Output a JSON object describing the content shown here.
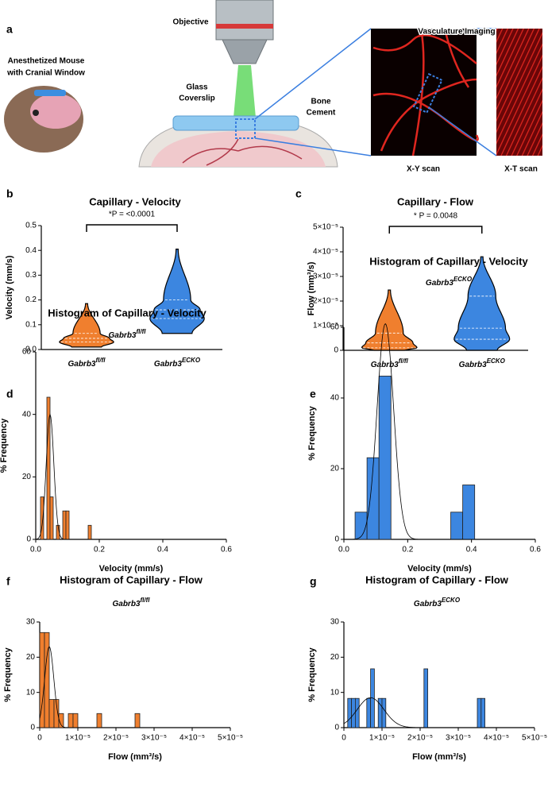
{
  "panel_a": {
    "label": "a",
    "objective": "Objective",
    "mouse": [
      "Anesthetized Mouse",
      "with Cranial Window"
    ],
    "coverslip": [
      "Glass",
      "Coverslip"
    ],
    "cement": [
      "Bone",
      "Cement"
    ],
    "imaging": "Vasculature Imaging",
    "xy": "X-Y scan",
    "xt": "X-T scan"
  },
  "chart_data": [
    {
      "type": "violin",
      "panel_label": "b",
      "title": "Capillary - Velocity",
      "annotation": "*P =  <0.0001",
      "y_label": "Velocity (mm/s)",
      "categories": [
        "Gabrb3",
        "Gabrb3"
      ],
      "category_superscripts": [
        "fl/fl",
        "ECKO"
      ],
      "groups": [
        {
          "color": "#f07f2e",
          "min": 0.01,
          "q1": 0.03,
          "median": 0.045,
          "q3": 0.065,
          "max": 0.185
        },
        {
          "color": "#3c86e0",
          "min": 0.065,
          "q1": 0.125,
          "median": 0.16,
          "q3": 0.2,
          "max": 0.405
        }
      ],
      "ylim": [
        0,
        0.5
      ],
      "yticks": [
        {
          "value": 0,
          "label": "0.0"
        },
        0.1,
        0.2,
        0.3,
        0.4,
        0.5
      ]
    },
    {
      "type": "violin",
      "panel_label": "c",
      "title": "Capillary - Flow",
      "annotation": "* P =  0.0048",
      "y_label": "Flow (mm³/s)",
      "categories": [
        "Gabrb3",
        "Gabrb3"
      ],
      "category_superscripts": [
        "fl/fl",
        "ECKO"
      ],
      "groups": [
        {
          "color": "#f07f2e",
          "min": 0,
          "q1": 1e-06,
          "median": 3e-06,
          "q3": 7e-06,
          "max": 2.45e-05
        },
        {
          "color": "#3c86e0",
          "min": 0,
          "q1": 4.5e-06,
          "median": 9e-06,
          "q3": 2.2e-05,
          "max": 3.8e-05
        }
      ],
      "ylim": [
        0,
        5e-05
      ],
      "yticks": [
        0,
        {
          "value": 1e-05,
          "label": "1×10⁻⁵"
        },
        {
          "value": 2e-05,
          "label": "2×10⁻⁵"
        },
        {
          "value": 3e-05,
          "label": "3×10⁻⁵"
        },
        {
          "value": 4e-05,
          "label": "4×10⁻⁵"
        },
        {
          "value": 5e-05,
          "label": "5×10⁻⁵"
        }
      ]
    },
    {
      "type": "histogram",
      "panel_label": "d",
      "title": "Histogram of Capillary - Velocity",
      "subtitle": "Gabrb3",
      "subtitle_superscript": "fl/fl",
      "x_label": "Velocity (mm/s)",
      "y_label": "% Frequency",
      "color": "#f07f2e",
      "bins": [
        0.015,
        0.025,
        0.035,
        0.045,
        0.055,
        0.065,
        0.075,
        0.085,
        0.095,
        0.105,
        0.115,
        0.125,
        0.135,
        0.145,
        0.155,
        0.165,
        0.175
      ],
      "values": [
        13.6,
        0,
        45.5,
        13.6,
        0,
        4.5,
        0,
        9.1,
        9.1,
        0,
        0,
        0,
        0,
        0,
        0,
        4.5
      ],
      "fit": {
        "mean": 0.045,
        "sd": 0.012,
        "peak": 40
      },
      "xlim": [
        0,
        0.6
      ],
      "xticks": [
        {
          "value": 0,
          "label": "0.0"
        },
        0.2,
        0.4,
        0.6
      ],
      "ylim": [
        0,
        60
      ],
      "yticks": [
        0,
        20,
        40,
        60
      ]
    },
    {
      "type": "histogram",
      "panel_label": "e",
      "title": "Histogram of Capillary - Velocity",
      "subtitle": "Gabrb3",
      "subtitle_superscript": "ECKO",
      "x_label": "Velocity (mm/s)",
      "y_label": "% Frequency",
      "color": "#3c86e0",
      "bins": [
        0.035,
        0.0725,
        0.11,
        0.1475,
        0.185,
        0.2225,
        0.26,
        0.2975,
        0.335,
        0.3725,
        0.41
      ],
      "values": [
        7.7,
        23.1,
        46.2,
        0,
        0,
        0,
        0,
        0,
        7.7,
        15.4
      ],
      "fit": {
        "mean": 0.13,
        "sd": 0.026,
        "peak": 61
      },
      "xlim": [
        0,
        0.6
      ],
      "xticks": [
        {
          "value": 0,
          "label": "0.0"
        },
        0.2,
        0.4,
        0.6
      ],
      "ylim": [
        0,
        60
      ],
      "yticks": [
        0,
        20,
        40,
        60
      ]
    },
    {
      "type": "histogram",
      "panel_label": "f",
      "title": "Histogram of Capillary - Flow",
      "subtitle": "Gabrb3",
      "subtitle_superscript": "fl/fl",
      "x_label": "Flow (mm³/s)",
      "y_label": "% Frequency",
      "color": "#f07f2e",
      "bins": [
        0,
        1.25e-06,
        2.5e-06,
        3.75e-06,
        5e-06,
        6.25e-06,
        7.5e-06,
        8.75e-06,
        1e-05,
        1.125e-05,
        1.25e-05,
        1.375e-05,
        1.5e-05,
        1.625e-05,
        1.75e-05,
        1.875e-05,
        2e-05,
        2.125e-05,
        2.25e-05,
        2.375e-05,
        2.5e-05,
        2.625e-05
      ],
      "values": [
        27,
        27,
        8,
        8,
        4,
        0,
        4,
        4,
        0,
        0,
        0,
        0,
        4,
        0,
        0,
        0,
        0,
        0,
        0,
        0,
        4
      ],
      "fit": {
        "mean": 2.5e-06,
        "sd": 1.2e-06,
        "peak": 23
      },
      "xlim": [
        0,
        5e-05
      ],
      "xticks": [
        0,
        {
          "value": 1e-05,
          "label": "1×10⁻⁵"
        },
        {
          "value": 2e-05,
          "label": "2×10⁻⁵"
        },
        {
          "value": 3e-05,
          "label": "3×10⁻⁵"
        },
        {
          "value": 4e-05,
          "label": "4×10⁻⁵"
        },
        {
          "value": 5e-05,
          "label": "5×10⁻⁵"
        }
      ],
      "ylim": [
        0,
        30
      ],
      "yticks": [
        0,
        10,
        20,
        30
      ]
    },
    {
      "type": "histogram",
      "panel_label": "g",
      "title": "Histogram of Capillary - Flow",
      "subtitle": "Gabrb3",
      "subtitle_superscript": "ECKO",
      "x_label": "Flow (mm³/s)",
      "y_label": "% Frequency",
      "color": "#3c86e0",
      "bins": [
        1e-06,
        2e-06,
        3e-06,
        4e-06,
        5e-06,
        6e-06,
        7e-06,
        8e-06,
        9e-06,
        1e-05,
        1.1e-05,
        1.2e-05,
        1.3e-05,
        1.4e-05,
        1.5e-05,
        1.6e-05,
        1.7e-05,
        1.8e-05,
        1.9e-05,
        2e-05,
        2.1e-05,
        2.2e-05,
        2.3e-05,
        2.4e-05,
        2.5e-05,
        2.6e-05,
        2.7e-05,
        2.8e-05,
        2.9e-05,
        3e-05,
        3.1e-05,
        3.2e-05,
        3.3e-05,
        3.4e-05,
        3.5e-05,
        3.6e-05,
        3.7e-05
      ],
      "values": [
        8.3,
        8.3,
        8.3,
        0,
        0,
        8.3,
        16.7,
        0,
        8.3,
        8.3,
        0,
        0,
        0,
        0,
        0,
        0,
        0,
        0,
        0,
        0,
        16.7,
        0,
        0,
        0,
        0,
        0,
        0,
        0,
        0,
        0,
        0,
        0,
        0,
        0,
        8.3,
        8.3
      ],
      "fit": {
        "mean": 7e-06,
        "sd": 3.5e-06,
        "peak": 8.5
      },
      "xlim": [
        0,
        5e-05
      ],
      "xticks": [
        0,
        {
          "value": 1e-05,
          "label": "1×10⁻⁵"
        },
        {
          "value": 2e-05,
          "label": "2×10⁻⁵"
        },
        {
          "value": 3e-05,
          "label": "3×10⁻⁵"
        },
        {
          "value": 4e-05,
          "label": "4×10⁻⁵"
        },
        {
          "value": 5e-05,
          "label": "5×10⁻⁵"
        }
      ],
      "ylim": [
        0,
        30
      ],
      "yticks": [
        0,
        10,
        20,
        30
      ]
    }
  ]
}
